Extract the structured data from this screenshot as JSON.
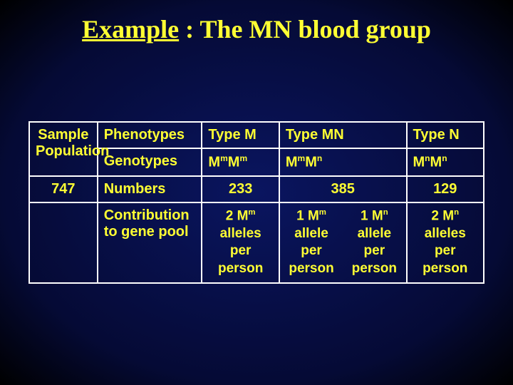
{
  "page": {
    "background_gradient": [
      "#0a1560",
      "#050a35",
      "#000000"
    ],
    "title_color": "#ffff33",
    "text_color": "#ffff33",
    "border_color": "#ffffff",
    "title_font": "Times New Roman",
    "body_font": "Arial",
    "title_fontsize_pt": 27,
    "body_fontsize_pt": 15
  },
  "title": {
    "word_underlined": "Example",
    "rest": " : The MN blood group"
  },
  "table": {
    "col_widths_pct": [
      15,
      23,
      17,
      14,
      14,
      17
    ],
    "rows": {
      "r0": {
        "sample_label_line1": "Sample",
        "sample_label_line2": "Population",
        "phenotypes_label": "Phenotypes",
        "type_m": "Type M",
        "type_mn": "Type MN",
        "type_n": "Type N"
      },
      "r1": {
        "genotypes_label": "Genotypes",
        "g_mm": {
          "base": "M",
          "sup": "m",
          "base2": "M",
          "sup2": "m"
        },
        "g_mn": {
          "base": "M",
          "sup": "m",
          "base2": "M",
          "sup2": "n"
        },
        "g_nn": {
          "base": "M",
          "sup": "n",
          "base2": "M",
          "sup2": "n"
        }
      },
      "r2": {
        "total_label": "747",
        "numbers_label": "Numbers",
        "n_m": "233",
        "n_mn": "385",
        "n_n": "129"
      },
      "r3": {
        "empty": "",
        "contrib_line1": "Contribution",
        "contrib_line2": "to gene pool",
        "pool_2mm": {
          "count": "2 M",
          "sup": "m",
          "l2": "alleles",
          "l3": "per",
          "l4": "person"
        },
        "pool_1mm": {
          "count": "1 M",
          "sup": "m",
          "l2": "allele",
          "l3": "per",
          "l4": "person"
        },
        "pool_1mn": {
          "count": "1 M",
          "sup": "n",
          "l2": "allele",
          "l3": "per",
          "l4": "person"
        },
        "pool_2mn": {
          "count": "2 M",
          "sup": "n",
          "l2": "alleles",
          "l3": "per",
          "l4": "person"
        }
      }
    }
  }
}
